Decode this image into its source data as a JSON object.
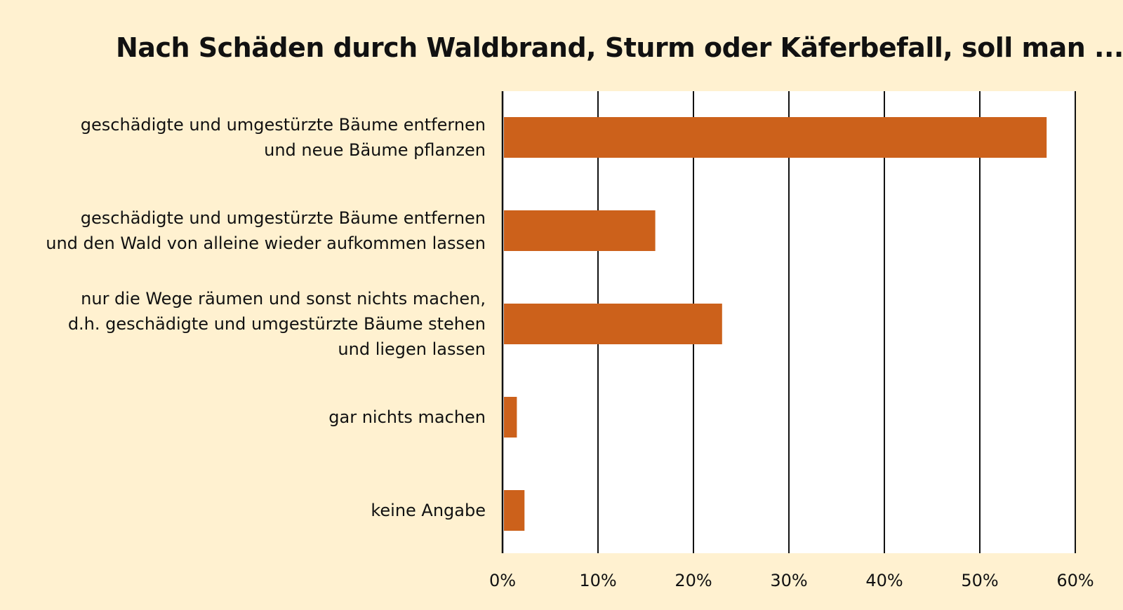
{
  "chart_data": {
    "type": "bar",
    "orientation": "horizontal",
    "title": "Nach Schäden durch Waldbrand, Sturm oder Käferbefall, soll man ...",
    "categories": [
      [
        "geschädigte und umgestürzte Bäume entfernen",
        "und neue Bäume pflanzen"
      ],
      [
        "geschädigte und umgestürzte Bäume entfernen",
        "und den Wald von alleine wieder aufkommen lassen"
      ],
      [
        "nur die Wege räumen und sonst nichts machen,",
        "d.h. geschädigte und umgestürzte Bäume stehen",
        "und liegen lassen"
      ],
      [
        "gar nichts machen"
      ],
      [
        "keine Angabe"
      ]
    ],
    "values": [
      57,
      16,
      23,
      1.5,
      2.3
    ],
    "unit": "%",
    "xlabel": "",
    "ylabel": "",
    "xlim": [
      0,
      60
    ],
    "xticks": [
      0,
      10,
      20,
      30,
      40,
      50,
      60
    ],
    "xtick_labels": [
      "0%",
      "10%",
      "20%",
      "30%",
      "40%",
      "50%",
      "60%"
    ],
    "grid": "vertical",
    "legend": "none",
    "colors": {
      "bar": "#cc611b",
      "background": "#fff1d0",
      "plot": "#ffffff",
      "grid": "#111111"
    }
  }
}
